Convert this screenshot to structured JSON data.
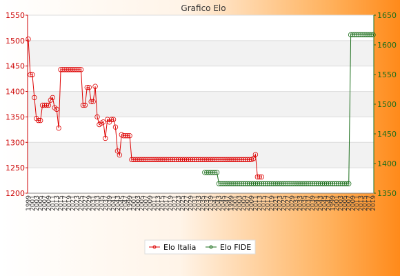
{
  "chart_data": {
    "type": "line",
    "title": "Grafico Elo",
    "legend_position": "bottom-center",
    "grid": true,
    "colors": {
      "italia": "#dd0000",
      "fide": "#1b6e1b"
    },
    "y_left": {
      "min": 1200,
      "max": 1550,
      "ticks": [
        1200,
        1250,
        1300,
        1350,
        1400,
        1450,
        1500,
        1550
      ]
    },
    "y_right": {
      "min": 1350,
      "max": 1650,
      "ticks": [
        1350,
        1400,
        1450,
        1500,
        1550,
        1600,
        1650
      ]
    },
    "x_count": 171,
    "x_tick_labels": [
      "1999",
      "2000",
      "2001",
      "2002",
      "2003",
      "2004",
      "2005",
      "2006",
      "2007",
      "2008",
      "2009",
      "2010",
      "2011",
      "2012",
      "2013",
      "2014",
      "2015",
      "2016",
      "2017",
      "2018",
      "2019",
      "2020",
      "2021",
      "2022",
      "2023",
      "2024",
      "2025",
      "2026",
      "2027",
      "2028",
      "2029",
      "2030",
      "2031",
      "2032",
      "2033",
      "2034",
      "2035",
      "2036",
      "2037",
      "2038",
      "2039",
      "2040",
      "2041",
      "2042",
      "2043",
      "2044",
      "2045",
      "2046",
      "2047",
      "2048"
    ],
    "series": [
      {
        "name": "Elo Italia",
        "axis": "left",
        "color": "#dd0000",
        "values": [
          1503,
          1433,
          1433,
          1388,
          1347,
          1343,
          1343,
          1373,
          1373,
          1373,
          1373,
          1383,
          1388,
          1368,
          1365,
          1328,
          1443,
          1443,
          1443,
          1443,
          1443,
          1443,
          1443,
          1443,
          1443,
          1443,
          1443,
          1373,
          1373,
          1408,
          1408,
          1380,
          1380,
          1410,
          1350,
          1335,
          1338,
          1340,
          1308,
          1345,
          1340,
          1345,
          1345,
          1330,
          1283,
          1275,
          1315,
          1313,
          1313,
          1313,
          1313,
          1266,
          1266,
          1266,
          1266,
          1266,
          1266,
          1266,
          1266,
          1266,
          1266,
          1266,
          1266,
          1266,
          1266,
          1266,
          1266,
          1266,
          1266,
          1266,
          1266,
          1266,
          1266,
          1266,
          1266,
          1266,
          1266,
          1266,
          1266,
          1266,
          1266,
          1266,
          1266,
          1266,
          1266,
          1266,
          1266,
          1266,
          1266,
          1266,
          1266,
          1266,
          1266,
          1266,
          1266,
          1266,
          1266,
          1266,
          1266,
          1266,
          1266,
          1266,
          1266,
          1266,
          1266,
          1266,
          1266,
          1266,
          1266,
          1266,
          1266,
          1268,
          1276,
          1232,
          1232,
          1232
        ]
      },
      {
        "name": "Elo FIDE",
        "axis": "right",
        "start_index": 87,
        "color": "#1b6e1b",
        "values": [
          1385,
          1385,
          1385,
          1385,
          1385,
          1385,
          1385,
          1366,
          1366,
          1366,
          1366,
          1366,
          1366,
          1366,
          1366,
          1366,
          1366,
          1366,
          1366,
          1366,
          1366,
          1366,
          1366,
          1366,
          1366,
          1366,
          1366,
          1366,
          1366,
          1366,
          1366,
          1366,
          1366,
          1366,
          1366,
          1366,
          1366,
          1366,
          1366,
          1366,
          1366,
          1366,
          1366,
          1366,
          1366,
          1366,
          1366,
          1366,
          1366,
          1366,
          1366,
          1366,
          1366,
          1366,
          1366,
          1366,
          1366,
          1366,
          1366,
          1366,
          1366,
          1366,
          1366,
          1366,
          1366,
          1366,
          1366,
          1366,
          1366,
          1366,
          1366,
          1366,
          1617,
          1617,
          1617,
          1617,
          1617,
          1617,
          1617,
          1617,
          1617,
          1617,
          1617,
          1617
        ]
      }
    ]
  }
}
